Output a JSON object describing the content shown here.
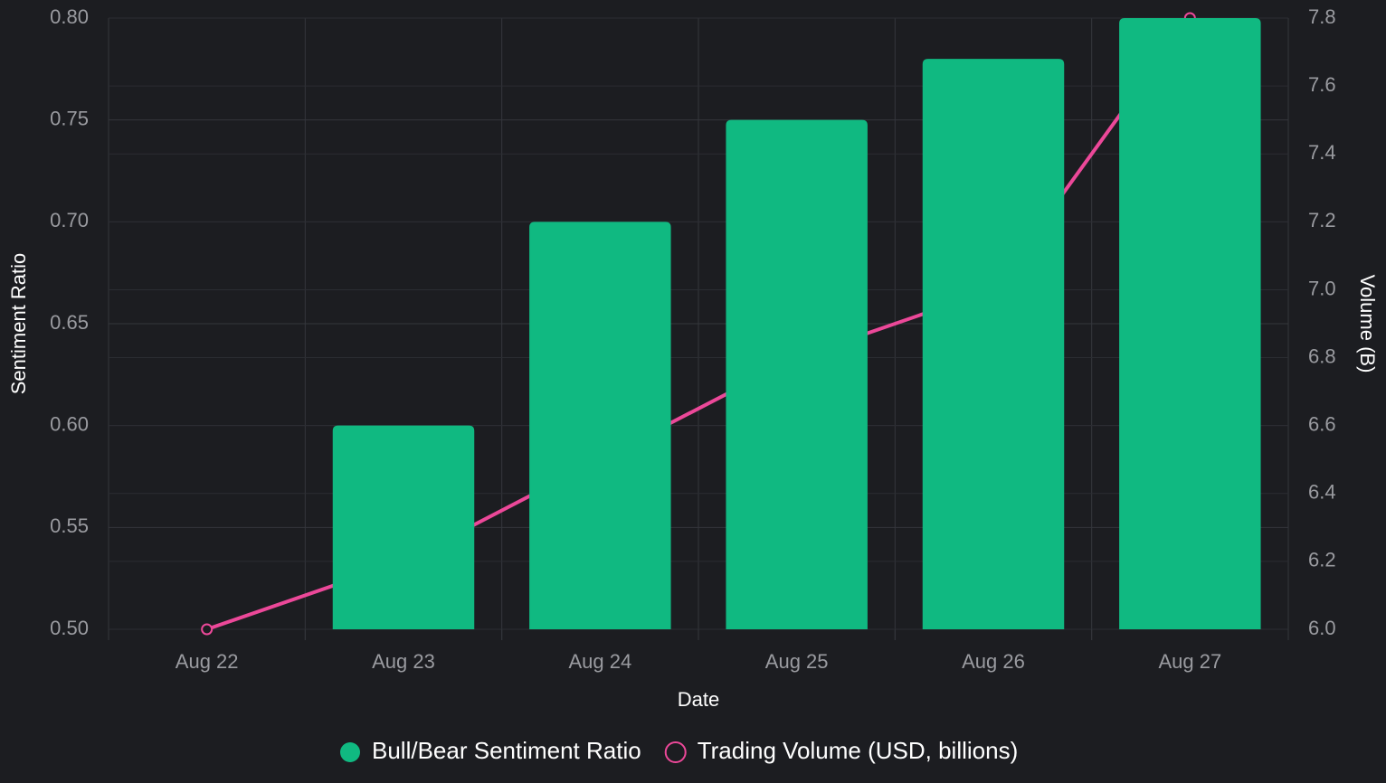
{
  "chart_data": {
    "type": "bar",
    "categories": [
      "Aug 22",
      "Aug 23",
      "Aug 24",
      "Aug 25",
      "Aug 26",
      "Aug 27"
    ],
    "series": [
      {
        "name": "Bull/Bear Sentiment Ratio",
        "type": "bar",
        "color": "#10b981",
        "values": [
          0.5,
          0.6,
          0.7,
          0.75,
          0.78,
          0.8
        ]
      },
      {
        "name": "Trading Volume (USD, billions)",
        "type": "line",
        "axis": "y2",
        "color": "#ec4899",
        "values": [
          6.0,
          6.2,
          6.5,
          6.8,
          7.0,
          7.8
        ]
      }
    ],
    "x_label": "Date",
    "y_label": "Sentiment Ratio",
    "y2_label": "Volume (B)",
    "ylim": [
      0.5,
      0.8
    ],
    "yticks": [
      {
        "value": 0.5,
        "label": "0.50"
      },
      0.55,
      {
        "value": 0.6,
        "label": "0.60"
      },
      0.65,
      {
        "value": 0.7,
        "label": "0.70"
      },
      0.75,
      {
        "value": 0.8,
        "label": "0.80"
      }
    ],
    "y2lim": [
      6.0,
      7.8
    ],
    "y2ticks": [
      {
        "value": 6.0,
        "label": "6.0"
      },
      6.2,
      6.4,
      6.6,
      6.8,
      {
        "value": 7.0,
        "label": "7.0"
      },
      7.2,
      7.4,
      7.6,
      7.8
    ],
    "grid": true,
    "legend": "bottom"
  }
}
